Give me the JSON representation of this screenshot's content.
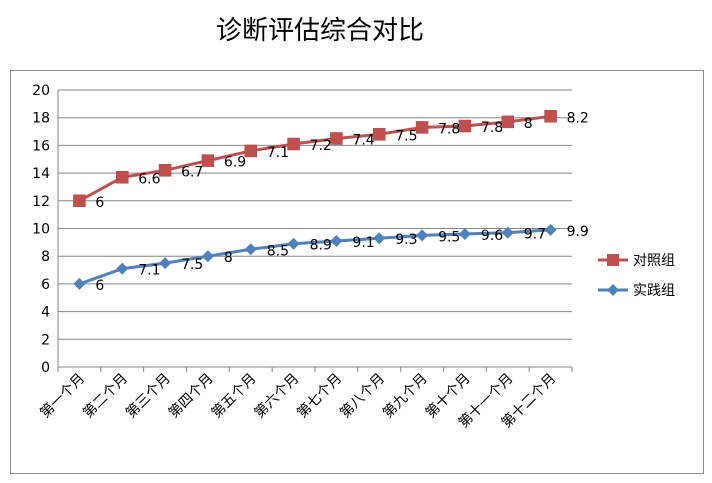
{
  "chart_data": {
    "type": "line",
    "title": "诊断评估综合对比",
    "categories": [
      "第一个月",
      "第二个月",
      "第三个月",
      "第四个月",
      "第五个月",
      "第六个月",
      "第七个月",
      "第八个月",
      "第九个月",
      "第十个月",
      "第十一个月",
      "第十二个月"
    ],
    "y_ticks": [
      "0",
      "2",
      "4",
      "6",
      "8",
      "10",
      "12",
      "14",
      "16",
      "18",
      "20"
    ],
    "ylim": [
      0,
      20
    ],
    "grid": true,
    "legend_position": "right",
    "series": [
      {
        "name": "对照组",
        "color": "#c0504d",
        "marker": "square",
        "values": [
          12,
          13.7,
          14.2,
          14.9,
          15.6,
          16.1,
          16.5,
          16.8,
          17.3,
          17.4,
          17.7,
          18.1
        ],
        "labels": [
          "6",
          "6.6",
          "6.7",
          "6.9",
          "7.1",
          "7.2",
          "7.4",
          "7.5",
          "7.8",
          "7.8",
          "8",
          "8.2"
        ]
      },
      {
        "name": "实践组",
        "color": "#4f81bd",
        "marker": "diamond",
        "values": [
          6,
          7.1,
          7.5,
          8,
          8.5,
          8.9,
          9.1,
          9.3,
          9.5,
          9.6,
          9.7,
          9.9
        ],
        "labels": [
          "6",
          "7.1",
          "7.5",
          "8",
          "8.5",
          "8.9",
          "9.1",
          "9.3",
          "9.5",
          "9.6",
          "9.7",
          "9.9"
        ]
      }
    ]
  }
}
